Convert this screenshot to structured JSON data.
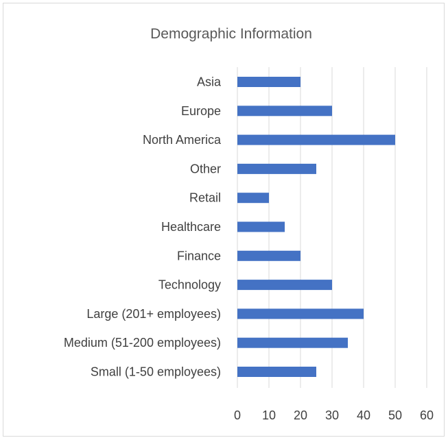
{
  "chart_data": {
    "type": "bar",
    "orientation": "horizontal",
    "title": "Demographic Information",
    "xlabel": "",
    "ylabel": "",
    "categories": [
      "Asia",
      "Europe",
      "North America",
      "Other",
      "Retail",
      "Healthcare",
      "Finance",
      "Technology",
      "Large (201+ employees)",
      "Medium (51-200 employees)",
      "Small (1-50 employees)"
    ],
    "values": [
      20,
      30,
      50,
      25,
      10,
      15,
      20,
      30,
      40,
      35,
      25
    ],
    "xlim": [
      0,
      60
    ],
    "xticks": [
      "0",
      "10",
      "20",
      "30",
      "40",
      "50",
      "60"
    ],
    "grid": true,
    "bar_color": "#4472c4"
  }
}
